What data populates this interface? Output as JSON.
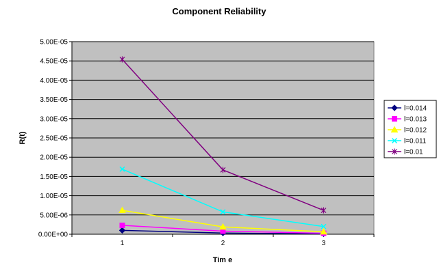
{
  "chart_data": {
    "type": "line",
    "title": "Component Reliability",
    "xlabel": "Tim e",
    "ylabel": "R(t)",
    "categories": [
      "1",
      "2",
      "3"
    ],
    "ylim": [
      0,
      5e-05
    ],
    "y_ticks": [
      0,
      5e-06,
      1e-05,
      1.5e-05,
      2e-05,
      2.5e-05,
      3e-05,
      3.5e-05,
      4e-05,
      4.5e-05,
      5e-05
    ],
    "y_tick_labels": [
      "0.00E+00",
      "5.00E-06",
      "1.00E-05",
      "1.50E-05",
      "2.00E-05",
      "2.50E-05",
      "3.00E-05",
      "3.50E-05",
      "4.00E-05",
      "4.50E-05",
      "5.00E-05"
    ],
    "grid": true,
    "legend_position": "right",
    "plot_background": "#c0c0c0",
    "series": [
      {
        "name": "l=0.014",
        "color": "#000080",
        "marker": "diamond",
        "values": [
          1e-06,
          3e-07,
          1e-07
        ]
      },
      {
        "name": "l=0.013",
        "color": "#ff00ff",
        "marker": "square",
        "values": [
          2.3e-06,
          8e-07,
          2.5e-07
        ]
      },
      {
        "name": "l=0.012",
        "color": "#ffff00",
        "marker": "triangle",
        "values": [
          6.2e-06,
          1.9e-06,
          6.5e-07
        ]
      },
      {
        "name": "l=0.011",
        "color": "#00ffff",
        "marker": "x",
        "values": [
          1.69e-05,
          5.8e-06,
          2e-06
        ]
      },
      {
        "name": "l=0.01",
        "color": "#800080",
        "marker": "star",
        "values": [
          4.54e-05,
          1.67e-05,
          6.2e-06
        ]
      }
    ]
  }
}
